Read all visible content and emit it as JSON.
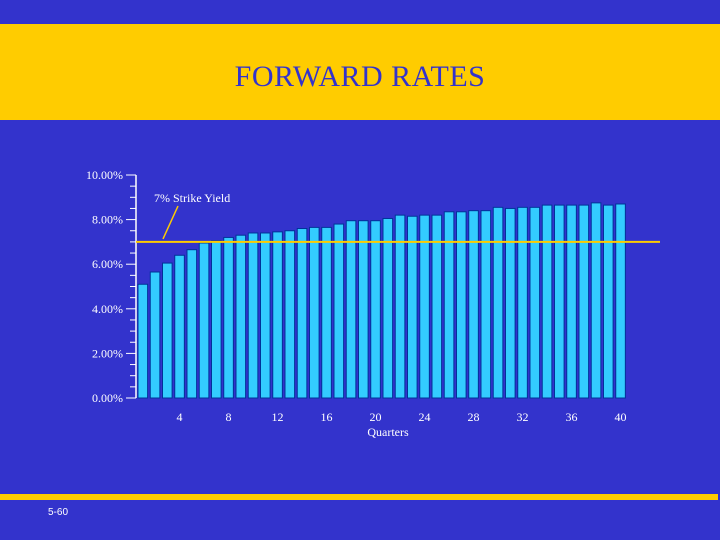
{
  "slide": {
    "title": "FORWARD RATES",
    "slide_number": "5-60"
  },
  "colors": {
    "background": "#3333cc",
    "accent": "#ffcc00",
    "bar_fill": "#33ccff",
    "bar_stroke": "#003399",
    "axis": "#ffffff"
  },
  "chart_data": {
    "type": "bar",
    "title": "FORWARD RATES",
    "xlabel": "Quarters",
    "ylabel": "",
    "ylim": [
      0,
      10
    ],
    "y_unit": "%",
    "y_ticks": [
      "0.00%",
      "2.00%",
      "4.00%",
      "6.00%",
      "8.00%",
      "10.00%"
    ],
    "x_ticks": [
      4,
      8,
      12,
      16,
      20,
      24,
      28,
      32,
      36,
      40
    ],
    "x": [
      1,
      2,
      3,
      4,
      5,
      6,
      7,
      8,
      9,
      10,
      11,
      12,
      13,
      14,
      15,
      16,
      17,
      18,
      19,
      20,
      21,
      22,
      23,
      24,
      25,
      26,
      27,
      28,
      29,
      30,
      31,
      32,
      33,
      34,
      35,
      36,
      37,
      38,
      39,
      40
    ],
    "values": [
      5.1,
      5.65,
      6.05,
      6.4,
      6.65,
      6.95,
      7.05,
      7.2,
      7.3,
      7.4,
      7.4,
      7.45,
      7.5,
      7.6,
      7.65,
      7.65,
      7.8,
      7.95,
      7.95,
      7.95,
      8.05,
      8.2,
      8.15,
      8.2,
      8.2,
      8.35,
      8.35,
      8.4,
      8.4,
      8.55,
      8.5,
      8.55,
      8.55,
      8.65,
      8.65,
      8.65,
      8.65,
      8.75,
      8.65,
      8.7
    ],
    "reference_line": {
      "value": 7.0,
      "label": "7% Strike Yield"
    },
    "grid": false,
    "legend": "none"
  }
}
